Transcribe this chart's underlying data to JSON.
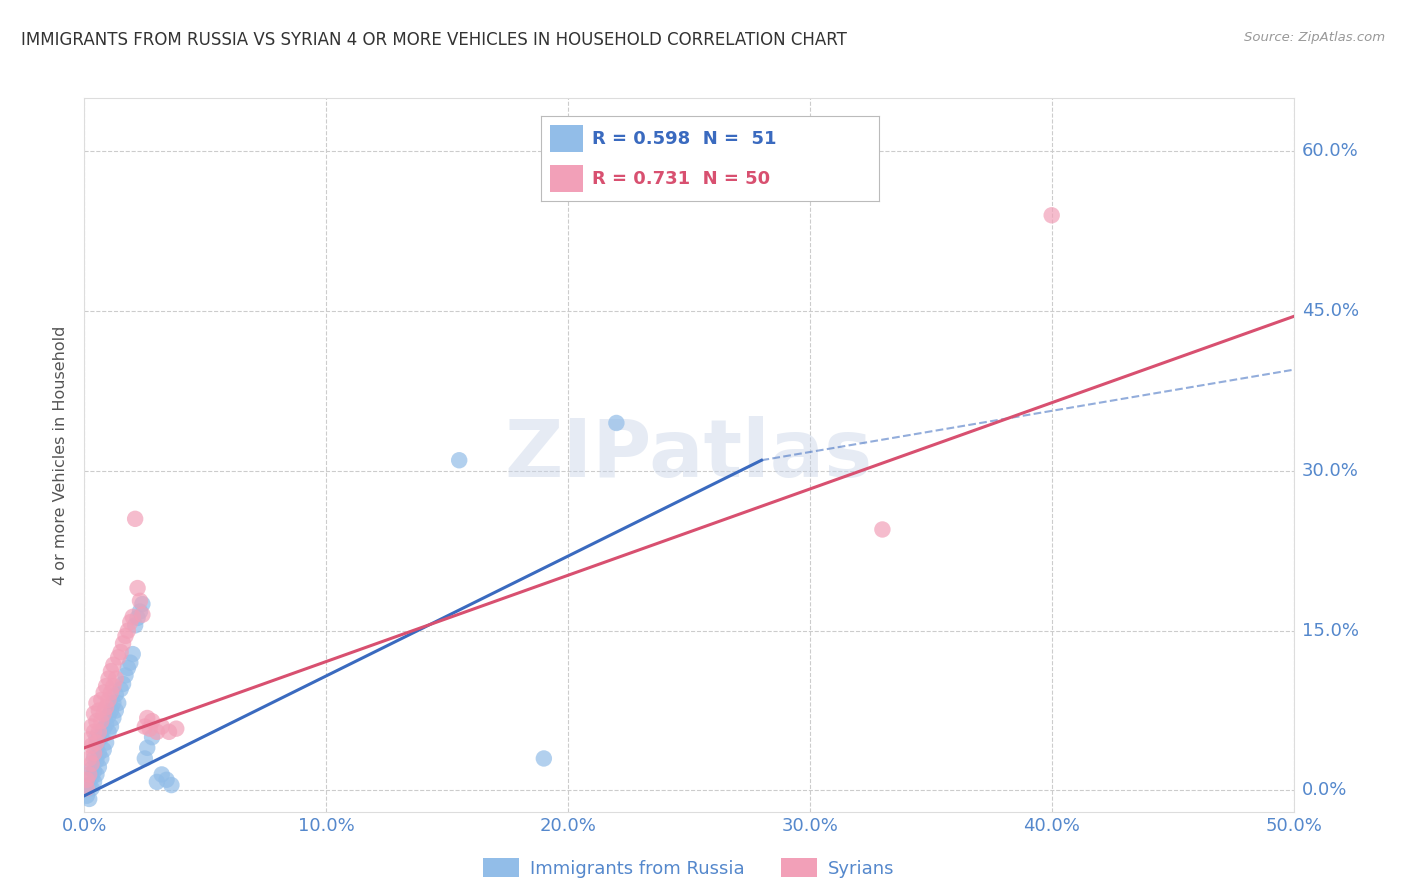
{
  "title": "IMMIGRANTS FROM RUSSIA VS SYRIAN 4 OR MORE VEHICLES IN HOUSEHOLD CORRELATION CHART",
  "source": "Source: ZipAtlas.com",
  "ylabel_label": "4 or more Vehicles in Household",
  "xlim": [
    0.0,
    0.5
  ],
  "ylim": [
    -0.02,
    0.65
  ],
  "watermark": "ZIPatlas",
  "russia_color": "#92bde8",
  "syria_color": "#f2a0b8",
  "russia_scatter": [
    [
      0.001,
      -0.005
    ],
    [
      0.002,
      -0.008
    ],
    [
      0.002,
      0.005
    ],
    [
      0.003,
      0.002
    ],
    [
      0.003,
      0.012
    ],
    [
      0.003,
      0.02
    ],
    [
      0.004,
      0.008
    ],
    [
      0.004,
      0.018
    ],
    [
      0.004,
      0.03
    ],
    [
      0.005,
      0.015
    ],
    [
      0.005,
      0.028
    ],
    [
      0.005,
      0.04
    ],
    [
      0.005,
      0.05
    ],
    [
      0.006,
      0.022
    ],
    [
      0.006,
      0.035
    ],
    [
      0.006,
      0.048
    ],
    [
      0.007,
      0.03
    ],
    [
      0.007,
      0.05
    ],
    [
      0.008,
      0.038
    ],
    [
      0.008,
      0.058
    ],
    [
      0.009,
      0.045
    ],
    [
      0.009,
      0.062
    ],
    [
      0.01,
      0.055
    ],
    [
      0.01,
      0.07
    ],
    [
      0.011,
      0.06
    ],
    [
      0.011,
      0.075
    ],
    [
      0.012,
      0.068
    ],
    [
      0.012,
      0.082
    ],
    [
      0.013,
      0.075
    ],
    [
      0.013,
      0.09
    ],
    [
      0.014,
      0.082
    ],
    [
      0.015,
      0.095
    ],
    [
      0.016,
      0.1
    ],
    [
      0.017,
      0.108
    ],
    [
      0.018,
      0.115
    ],
    [
      0.019,
      0.12
    ],
    [
      0.02,
      0.128
    ],
    [
      0.021,
      0.155
    ],
    [
      0.022,
      0.162
    ],
    [
      0.023,
      0.168
    ],
    [
      0.024,
      0.175
    ],
    [
      0.025,
      0.03
    ],
    [
      0.026,
      0.04
    ],
    [
      0.028,
      0.05
    ],
    [
      0.03,
      0.008
    ],
    [
      0.032,
      0.015
    ],
    [
      0.034,
      0.01
    ],
    [
      0.036,
      0.005
    ],
    [
      0.155,
      0.31
    ],
    [
      0.19,
      0.03
    ],
    [
      0.22,
      0.345
    ]
  ],
  "syria_scatter": [
    [
      0.001,
      0.002
    ],
    [
      0.001,
      0.01
    ],
    [
      0.002,
      0.015
    ],
    [
      0.002,
      0.03
    ],
    [
      0.002,
      0.048
    ],
    [
      0.003,
      0.025
    ],
    [
      0.003,
      0.042
    ],
    [
      0.003,
      0.06
    ],
    [
      0.004,
      0.035
    ],
    [
      0.004,
      0.055
    ],
    [
      0.004,
      0.072
    ],
    [
      0.005,
      0.045
    ],
    [
      0.005,
      0.065
    ],
    [
      0.005,
      0.082
    ],
    [
      0.006,
      0.055
    ],
    [
      0.006,
      0.075
    ],
    [
      0.007,
      0.065
    ],
    [
      0.007,
      0.085
    ],
    [
      0.008,
      0.072
    ],
    [
      0.008,
      0.092
    ],
    [
      0.009,
      0.078
    ],
    [
      0.009,
      0.098
    ],
    [
      0.01,
      0.085
    ],
    [
      0.01,
      0.105
    ],
    [
      0.011,
      0.092
    ],
    [
      0.011,
      0.112
    ],
    [
      0.012,
      0.098
    ],
    [
      0.012,
      0.118
    ],
    [
      0.013,
      0.105
    ],
    [
      0.014,
      0.125
    ],
    [
      0.015,
      0.13
    ],
    [
      0.016,
      0.138
    ],
    [
      0.017,
      0.145
    ],
    [
      0.018,
      0.15
    ],
    [
      0.019,
      0.158
    ],
    [
      0.02,
      0.163
    ],
    [
      0.021,
      0.255
    ],
    [
      0.022,
      0.19
    ],
    [
      0.023,
      0.178
    ],
    [
      0.024,
      0.165
    ],
    [
      0.025,
      0.06
    ],
    [
      0.026,
      0.068
    ],
    [
      0.027,
      0.058
    ],
    [
      0.028,
      0.065
    ],
    [
      0.03,
      0.055
    ],
    [
      0.032,
      0.06
    ],
    [
      0.035,
      0.055
    ],
    [
      0.038,
      0.058
    ],
    [
      0.33,
      0.245
    ],
    [
      0.4,
      0.54
    ]
  ],
  "russia_line_solid": {
    "x0": 0.0,
    "y0": -0.005,
    "x1": 0.28,
    "y1": 0.31
  },
  "russia_line_dash": {
    "x0": 0.28,
    "y0": 0.31,
    "x1": 0.5,
    "y1": 0.395
  },
  "syria_line": {
    "x0": 0.0,
    "y0": 0.04,
    "x1": 0.5,
    "y1": 0.445
  },
  "russia_line_color": "#3a6abf",
  "syria_line_color": "#d85070",
  "bg_color": "#ffffff",
  "grid_color": "#cccccc",
  "tick_color": "#5588cc",
  "title_color": "#333333",
  "legend_label_russia": "Immigrants from Russia",
  "legend_label_syria": "Syrians",
  "legend_russia_text": "R = 0.598  N =  51",
  "legend_syria_text": "R = 0.731  N = 50"
}
